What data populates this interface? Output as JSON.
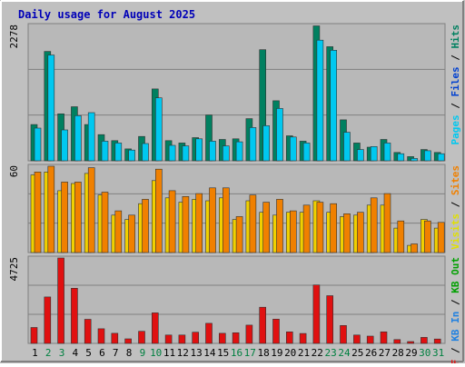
{
  "title": "Daily usage for August 2025",
  "colors": {
    "background": "#c0c0c0",
    "frame_light": "#ffffff",
    "frame_dark": "#808080",
    "plot_bg": "#b8b8b8",
    "grid": "#808080",
    "title": "#0000b8",
    "hits": "#008060",
    "files": "#00c8f0",
    "pages": "#00c8f0",
    "visits": "#f08000",
    "sites": "#f0d000",
    "kbf": "#e01010",
    "weekday_tick": "#000000",
    "weekend_tick": "#008040",
    "label_kbf": "#e01010",
    "label_kbin": "#2080e0",
    "label_kbout": "#00a000",
    "label_files": "#0040d0",
    "label_pages": "#00c8f0",
    "label_hits": "#008060",
    "label_sites": "#f08000",
    "label_visits": "#e0e000",
    "label_sep": "#000000"
  },
  "chart_data": [
    {
      "type": "bar",
      "panel": "hits",
      "ymax_label": "2278",
      "ylim": [
        0,
        2278
      ],
      "legend_right": [
        {
          "text": "Pages",
          "color_key": "label_pages"
        },
        {
          "text": " / ",
          "color_key": "label_sep"
        },
        {
          "text": "Files",
          "color_key": "label_files"
        },
        {
          "text": " / ",
          "color_key": "label_sep"
        },
        {
          "text": "Hits",
          "color_key": "label_hits"
        }
      ],
      "categories": [
        "1",
        "2",
        "3",
        "4",
        "5",
        "6",
        "7",
        "8",
        "9",
        "10",
        "11",
        "12",
        "13",
        "14",
        "15",
        "16",
        "17",
        "18",
        "19",
        "20",
        "21",
        "22",
        "23",
        "24",
        "25",
        "26",
        "27",
        "28",
        "29",
        "30",
        "31"
      ],
      "series": [
        {
          "name": "Hits",
          "color_key": "hits",
          "values": [
            610,
            1840,
            790,
            910,
            610,
            440,
            340,
            200,
            410,
            1210,
            340,
            300,
            390,
            770,
            360,
            370,
            710,
            1870,
            1010,
            420,
            330,
            2270,
            1920,
            690,
            300,
            230,
            360,
            140,
            70,
            190,
            140
          ]
        },
        {
          "name": "Files",
          "color_key": "files",
          "values": [
            550,
            1780,
            520,
            760,
            810,
            330,
            300,
            180,
            290,
            1060,
            260,
            250,
            370,
            330,
            250,
            320,
            560,
            590,
            880,
            400,
            300,
            2030,
            1860,
            480,
            190,
            240,
            300,
            120,
            40,
            170,
            120
          ]
        }
      ]
    },
    {
      "type": "bar",
      "panel": "visits",
      "ymax_label": "60",
      "ylim": [
        0,
        60
      ],
      "legend_right": [
        {
          "text": "Visits",
          "color_key": "label_visits"
        },
        {
          "text": " / ",
          "color_key": "label_sep"
        },
        {
          "text": "Sites",
          "color_key": "label_sites"
        }
      ],
      "categories": [
        "1",
        "2",
        "3",
        "4",
        "5",
        "6",
        "7",
        "8",
        "9",
        "10",
        "11",
        "12",
        "13",
        "14",
        "15",
        "16",
        "17",
        "18",
        "19",
        "20",
        "21",
        "22",
        "23",
        "24",
        "25",
        "26",
        "27",
        "28",
        "29",
        "30",
        "31"
      ],
      "series": [
        {
          "name": "Visits",
          "color_key": "sites",
          "values": [
            54,
            56,
            43,
            48,
            55,
            40,
            26,
            23,
            34,
            50,
            38,
            35,
            37,
            36,
            38,
            23,
            36,
            28,
            26,
            28,
            28,
            36,
            28,
            25,
            26,
            33,
            33,
            17,
            5,
            23,
            17
          ]
        },
        {
          "name": "Sites",
          "color_key": "visits",
          "values": [
            56,
            60,
            49,
            49,
            59,
            42,
            29,
            26,
            37,
            58,
            43,
            39,
            41,
            45,
            45,
            25,
            40,
            35,
            37,
            29,
            33,
            35,
            34,
            27,
            28,
            38,
            41,
            22,
            6,
            22,
            21
          ]
        }
      ]
    },
    {
      "type": "bar",
      "panel": "kbf",
      "ymax_label": "4725",
      "ylim": [
        0,
        4725
      ],
      "legend_right": [
        {
          "text": "KB F",
          "color_key": "label_kbf"
        },
        {
          "text": " / ",
          "color_key": "label_sep"
        },
        {
          "text": "KB In",
          "color_key": "label_kbin"
        },
        {
          "text": " / ",
          "color_key": "label_sep"
        },
        {
          "text": "KB Out",
          "color_key": "label_kbout"
        }
      ],
      "categories": [
        "1",
        "2",
        "3",
        "4",
        "5",
        "6",
        "7",
        "8",
        "9",
        "10",
        "11",
        "12",
        "13",
        "14",
        "15",
        "16",
        "17",
        "18",
        "19",
        "20",
        "21",
        "22",
        "23",
        "24",
        "25",
        "26",
        "27",
        "28",
        "29",
        "30",
        "31"
      ],
      "series": [
        {
          "name": "KB F",
          "color_key": "kbf",
          "values": [
            880,
            2570,
            4730,
            3050,
            1330,
            810,
            560,
            250,
            670,
            1690,
            460,
            460,
            620,
            1110,
            560,
            590,
            1010,
            2000,
            1340,
            640,
            550,
            3230,
            2640,
            990,
            460,
            400,
            640,
            210,
            100,
            330,
            240
          ]
        }
      ]
    }
  ],
  "x_axis": {
    "ticks": [
      "1",
      "2",
      "3",
      "4",
      "5",
      "6",
      "7",
      "8",
      "9",
      "10",
      "11",
      "12",
      "13",
      "14",
      "15",
      "16",
      "17",
      "18",
      "19",
      "20",
      "21",
      "22",
      "23",
      "24",
      "25",
      "26",
      "27",
      "28",
      "29",
      "30",
      "31"
    ],
    "weekend": [
      false,
      true,
      true,
      false,
      false,
      false,
      false,
      false,
      true,
      true,
      false,
      false,
      false,
      false,
      false,
      true,
      true,
      false,
      false,
      false,
      false,
      false,
      true,
      true,
      false,
      false,
      false,
      false,
      false,
      true,
      true
    ]
  }
}
